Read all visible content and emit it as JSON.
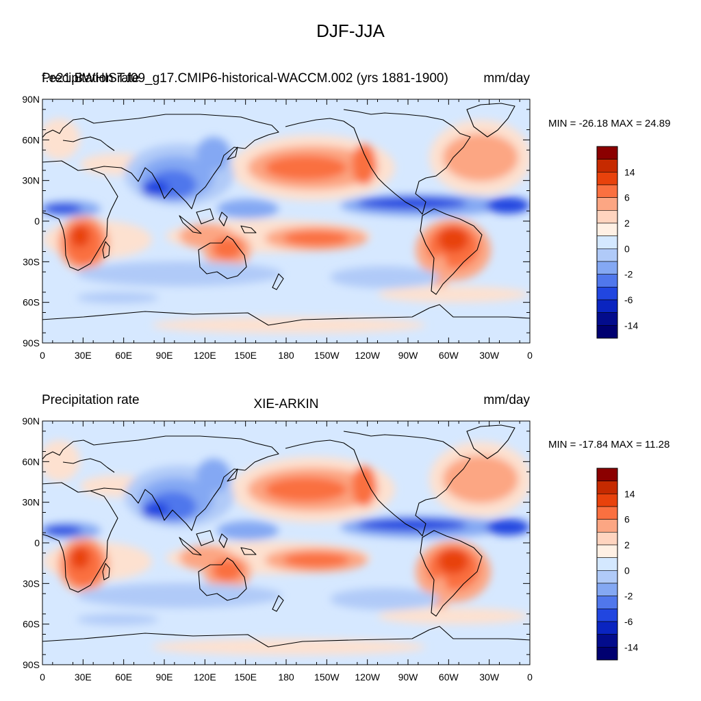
{
  "title": "DJF-JJA",
  "panels": [
    {
      "left_string": "Precipitation rate",
      "center_string": "",
      "overlap_string": "f.e21.BWHIST.f09_g17.CMIP6-historical-WACCM.002 (yrs 1881-1900)",
      "right_string": "mm/day",
      "minmax": "MIN = -26.18 MAX =  24.89"
    },
    {
      "left_string": "Precipitation rate",
      "center_string": "XIE-ARKIN",
      "right_string": "mm/day",
      "minmax": "MIN = -17.84 MAX =  11.28"
    }
  ],
  "x_ticks": [
    "0",
    "30E",
    "60E",
    "90E",
    "120E",
    "150E",
    "180",
    "150W",
    "120W",
    "90W",
    "60W",
    "30W",
    "0"
  ],
  "y_ticks": [
    "90N",
    "60N",
    "30N",
    "0",
    "30S",
    "60S",
    "90S"
  ],
  "colorbar": {
    "labels": [
      "14",
      "6",
      "2",
      "0",
      "-2",
      "-6",
      "-14"
    ],
    "colors": [
      "#8b0000",
      "#c62a00",
      "#e8420c",
      "#fa7040",
      "#fca683",
      "#ffd4bf",
      "#fff0e4",
      "#d4e8ff",
      "#b0caf8",
      "#84a8f3",
      "#5077ec",
      "#2146e0",
      "#0a24c0",
      "#030c8c",
      "#000070"
    ]
  },
  "field_colors": {
    "pos1": "#fde1d0",
    "pos2": "#fca683",
    "pos3": "#fa7040",
    "pos4": "#e8420c",
    "pos5": "#c62a00",
    "neg1": "#d6e8ff",
    "neg2": "#b0caf8",
    "neg3": "#84a8f3",
    "neg4": "#5077ec",
    "neg5": "#2146e0",
    "neg6": "#0a24c0"
  }
}
